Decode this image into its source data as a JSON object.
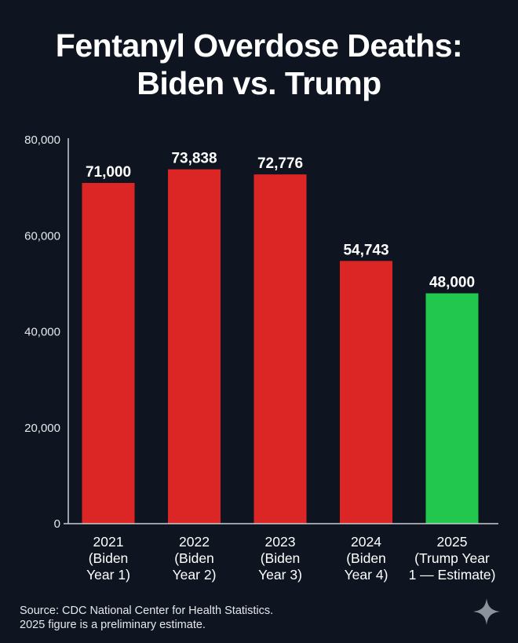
{
  "chart_data": {
    "type": "bar",
    "title_lines": [
      "Fentanyl Overdose Deaths:",
      "Biden vs. Trump"
    ],
    "categories": [
      [
        "2021",
        "(Biden",
        "Year 1)"
      ],
      [
        "2022",
        "(Biden",
        "Year 2)"
      ],
      [
        "2023",
        "(Biden",
        "Year 3)"
      ],
      [
        "2024",
        "(Biden",
        "Year 4)"
      ],
      [
        "2025",
        "(Trump Year",
        "1 — Estimate)"
      ]
    ],
    "values": [
      71000,
      73838,
      72776,
      54743,
      48000
    ],
    "value_labels": [
      "71,000",
      "73,838",
      "72,776",
      "54,743",
      "48,000"
    ],
    "bar_colors": [
      "#dc2626",
      "#dc2626",
      "#dc2626",
      "#dc2626",
      "#22c84e"
    ],
    "ylim": [
      0,
      80000
    ],
    "yticks": [
      0,
      20000,
      40000,
      60000,
      80000
    ],
    "ytick_labels": [
      "0",
      "20,000",
      "40,000",
      "60,000",
      "80,000"
    ],
    "grid": false,
    "legend": "none",
    "xlabel": "",
    "ylabel": ""
  },
  "footer": {
    "source_line1": "Source: CDC National Center for Health Statistics.",
    "source_line2": "2025 figure is a preliminary estimate."
  },
  "icons": {
    "corner": "sparkle-icon"
  },
  "colors": {
    "background": "#0e1520",
    "axis": "#c8ccd2",
    "text": "#ffffff"
  }
}
